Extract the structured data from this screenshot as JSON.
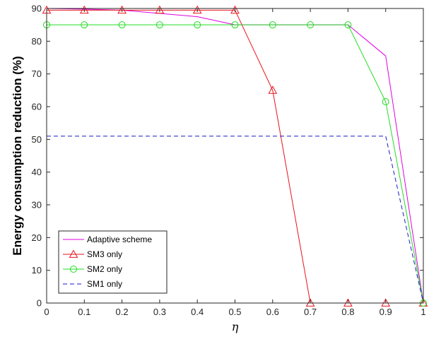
{
  "chart_data": {
    "type": "line",
    "title": "",
    "xlabel": "η",
    "ylabel": "Energy consumption reduction (%)",
    "xlim": [
      0,
      1
    ],
    "ylim": [
      0,
      90
    ],
    "xticks": [
      0,
      0.1,
      0.2,
      0.3,
      0.4,
      0.5,
      0.6,
      0.7,
      0.8,
      0.9,
      1
    ],
    "xtick_labels": [
      "0",
      "0.1",
      "0.2",
      "0.3",
      "0.4",
      "0.5",
      "0.6",
      "0.7",
      "0.8",
      "0.9",
      "1"
    ],
    "yticks": [
      0,
      10,
      20,
      30,
      40,
      50,
      60,
      70,
      80,
      90
    ],
    "ytick_labels": [
      "0",
      "10",
      "20",
      "30",
      "40",
      "50",
      "60",
      "70",
      "80",
      "90"
    ],
    "grid": false,
    "legend_position": "bottom-left",
    "series": [
      {
        "name": "Adaptive scheme",
        "color": "#e000e0",
        "marker": "none",
        "dash": "solid",
        "x": [
          0,
          0.1,
          0.2,
          0.3,
          0.4,
          0.5,
          0.6,
          0.7,
          0.8,
          0.9,
          1
        ],
        "y": [
          90,
          89.8,
          89.5,
          88.5,
          87.5,
          85,
          85,
          85,
          85,
          75.5,
          0
        ]
      },
      {
        "name": "SM3 only",
        "color": "#e8121c",
        "marker": "triangle",
        "dash": "solid",
        "x": [
          0,
          0.1,
          0.2,
          0.3,
          0.4,
          0.5,
          0.6,
          0.7,
          0.8,
          0.9,
          1
        ],
        "y": [
          89.5,
          89.5,
          89.5,
          89.5,
          89.5,
          89.5,
          65,
          0,
          0,
          0,
          0
        ]
      },
      {
        "name": "SM2 only",
        "color": "#22dd22",
        "marker": "circle",
        "dash": "solid",
        "x": [
          0,
          0.1,
          0.2,
          0.3,
          0.4,
          0.5,
          0.6,
          0.7,
          0.8,
          0.9,
          1
        ],
        "y": [
          85,
          85,
          85,
          85,
          85,
          85,
          85,
          85,
          85,
          61.5,
          0
        ]
      },
      {
        "name": "SM1 only",
        "color": "#1a1acc",
        "marker": "none",
        "dash": "dashed",
        "x": [
          0,
          0.9,
          1
        ],
        "y": [
          51,
          51,
          0
        ]
      }
    ]
  }
}
